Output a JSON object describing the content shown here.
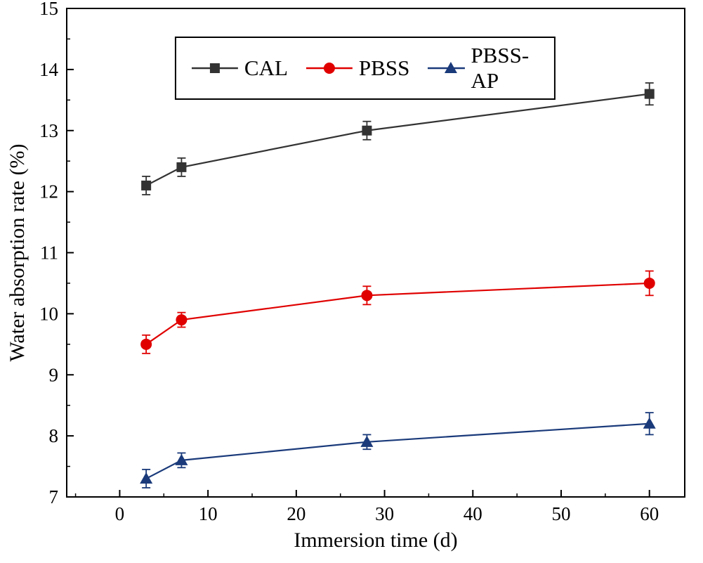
{
  "figure": {
    "background": "#ffffff"
  },
  "chart_data": {
    "type": "line",
    "title": "",
    "xlabel": "Immersion time (d)",
    "ylabel": "Water absorption rate (%)",
    "xlim": [
      -6,
      64
    ],
    "ylim": [
      7,
      15
    ],
    "xticks": [
      0,
      10,
      20,
      30,
      40,
      50,
      60
    ],
    "yticks": [
      7,
      8,
      9,
      10,
      11,
      12,
      13,
      14,
      15
    ],
    "x_minor_step": 5,
    "y_minor_step": 0.5,
    "grid": false,
    "legend_position": "top-center",
    "x": [
      3,
      7,
      28,
      60
    ],
    "series": [
      {
        "name": "CAL",
        "marker": "square",
        "color": "#333333",
        "values": [
          12.1,
          12.4,
          13.0,
          13.6
        ],
        "errors": [
          0.15,
          0.15,
          0.15,
          0.18
        ]
      },
      {
        "name": "PBSS",
        "marker": "circle",
        "color": "#e00000",
        "values": [
          9.5,
          9.9,
          10.3,
          10.5
        ],
        "errors": [
          0.15,
          0.12,
          0.15,
          0.2
        ]
      },
      {
        "name": "PBSS-AP",
        "marker": "triangle",
        "color": "#1a3a7a",
        "values": [
          7.3,
          7.6,
          7.9,
          8.2
        ],
        "errors": [
          0.15,
          0.12,
          0.12,
          0.18
        ]
      }
    ]
  }
}
